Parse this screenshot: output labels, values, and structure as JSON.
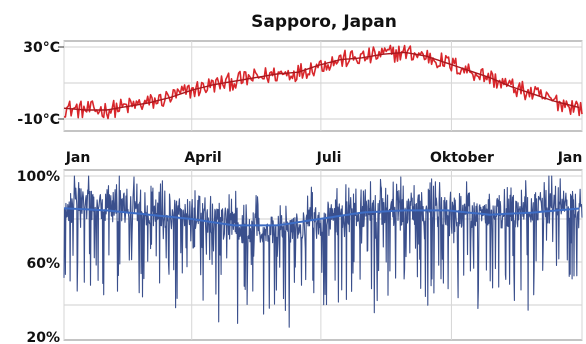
{
  "chart_data": [
    {
      "type": "line",
      "title": "Sapporo, Japan",
      "y_tick_labels": [
        "30°C",
        "-10°C"
      ],
      "y_ticks": [
        30,
        -10
      ],
      "ylim": [
        -14,
        37
      ],
      "x_tick_labels": [
        "Jan",
        "April",
        "Juli",
        "Oktober",
        "Jan"
      ],
      "x_ticks_day": [
        0,
        90,
        181,
        273,
        365
      ],
      "grid": true,
      "series": [
        {
          "color": "#d8262b",
          "x_day": [
            0,
            15,
            30,
            45,
            60,
            75,
            90,
            105,
            120,
            135,
            150,
            165,
            180,
            195,
            210,
            225,
            240,
            255,
            270,
            285,
            300,
            315,
            330,
            345,
            365
          ],
          "values": [
            -4,
            -5,
            -5,
            -3,
            -1,
            2,
            6,
            9,
            11,
            13,
            15,
            16,
            20,
            23,
            24,
            26,
            27,
            25,
            21,
            17,
            13,
            8,
            4,
            0,
            -4
          ]
        },
        {
          "color": "#a8171d",
          "x_day": [
            0,
            15,
            30,
            45,
            60,
            75,
            90,
            105,
            120,
            135,
            150,
            165,
            180,
            195,
            210,
            225,
            240,
            255,
            270,
            285,
            300,
            315,
            330,
            345,
            365
          ],
          "values": [
            -4,
            -5,
            -5,
            -3,
            -1,
            2,
            6,
            9,
            11,
            13,
            15,
            16,
            20,
            23,
            24,
            26,
            27,
            25,
            21,
            17,
            13,
            8,
            4,
            0,
            -4
          ]
        }
      ]
    },
    {
      "type": "line",
      "y_tick_labels": [
        "100%",
        "60%",
        "20%"
      ],
      "y_ticks": [
        100,
        60,
        20
      ],
      "ylim": [
        20,
        100
      ],
      "grid": true,
      "series": [
        {
          "color": "#3a4f8c",
          "x_day": [
            0,
            30,
            60,
            90,
            120,
            150,
            180,
            210,
            240,
            270,
            300,
            330,
            365
          ],
          "values": [
            88,
            86,
            84,
            80,
            76,
            75,
            78,
            82,
            84,
            83,
            82,
            84,
            86
          ]
        },
        {
          "color": "#3d6cc4",
          "x_day": [
            0,
            30,
            60,
            90,
            120,
            150,
            180,
            210,
            240,
            270,
            300,
            330,
            365
          ],
          "values": [
            85,
            84,
            82,
            80,
            77,
            77,
            80,
            83,
            84,
            84,
            82,
            83,
            85
          ]
        }
      ]
    }
  ]
}
